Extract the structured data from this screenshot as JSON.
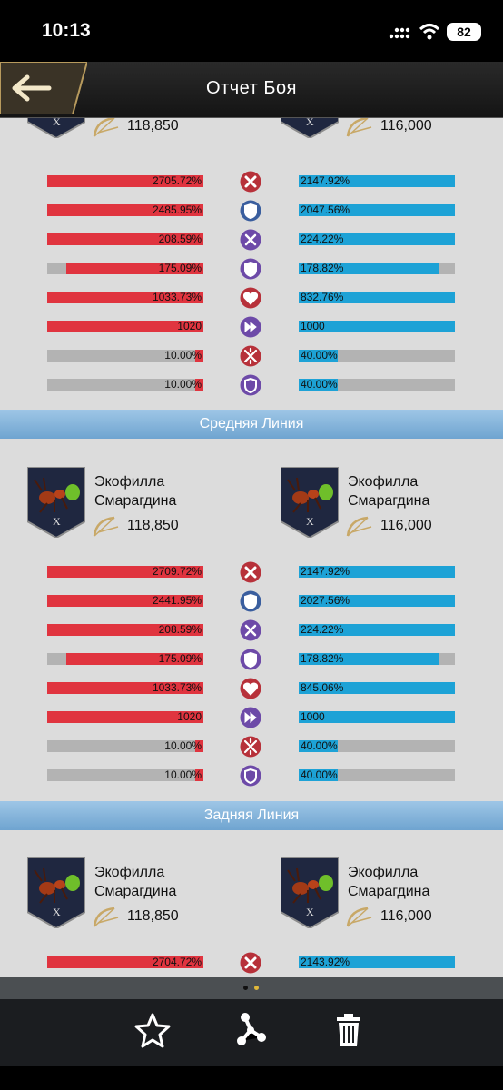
{
  "status": {
    "time": "10:13",
    "battery": "82"
  },
  "header": {
    "title": "Отчет Боя"
  },
  "sections": [
    {
      "left": {
        "power": "118,850"
      },
      "right": {
        "power": "116,000"
      },
      "stats": [
        {
          "icon": "attack-icon",
          "left": "2705.72%",
          "left_pct": 1.0,
          "right": "2147.92%",
          "right_pct": 1.0
        },
        {
          "icon": "defense-icon",
          "left": "2485.95%",
          "left_pct": 1.0,
          "right": "2047.56%",
          "right_pct": 1.0
        },
        {
          "icon": "swords-icon",
          "left": "208.59%",
          "left_pct": 1.0,
          "right": "224.22%",
          "right_pct": 1.0
        },
        {
          "icon": "shield-icon",
          "left": "175.09%",
          "left_pct": 0.88,
          "right": "178.82%",
          "right_pct": 0.9
        },
        {
          "icon": "heart-icon",
          "left": "1033.73%",
          "left_pct": 1.0,
          "right": "832.76%",
          "right_pct": 1.0
        },
        {
          "icon": "speed-icon",
          "left": "1020",
          "left_pct": 1.0,
          "right": "1000",
          "right_pct": 1.0
        },
        {
          "icon": "crit-icon",
          "left": "10.00%",
          "left_pct": 0.05,
          "right": "40.00%",
          "right_pct": 0.25
        },
        {
          "icon": "crit-defense-icon",
          "left": "10.00%",
          "left_pct": 0.05,
          "right": "40.00%",
          "right_pct": 0.25
        }
      ]
    },
    {
      "label": "Средняя Линия",
      "left": {
        "name1": "Экофилла",
        "name2": "Смарагдина",
        "power": "118,850"
      },
      "right": {
        "name1": "Экофилла",
        "name2": "Смарагдина",
        "power": "116,000"
      },
      "stats": [
        {
          "icon": "attack-icon",
          "left": "2709.72%",
          "left_pct": 1.0,
          "right": "2147.92%",
          "right_pct": 1.0
        },
        {
          "icon": "defense-icon",
          "left": "2441.95%",
          "left_pct": 1.0,
          "right": "2027.56%",
          "right_pct": 1.0
        },
        {
          "icon": "swords-icon",
          "left": "208.59%",
          "left_pct": 1.0,
          "right": "224.22%",
          "right_pct": 1.0
        },
        {
          "icon": "shield-icon",
          "left": "175.09%",
          "left_pct": 0.88,
          "right": "178.82%",
          "right_pct": 0.9
        },
        {
          "icon": "heart-icon",
          "left": "1033.73%",
          "left_pct": 1.0,
          "right": "845.06%",
          "right_pct": 1.0
        },
        {
          "icon": "speed-icon",
          "left": "1020",
          "left_pct": 1.0,
          "right": "1000",
          "right_pct": 1.0
        },
        {
          "icon": "crit-icon",
          "left": "10.00%",
          "left_pct": 0.05,
          "right": "40.00%",
          "right_pct": 0.25
        },
        {
          "icon": "crit-defense-icon",
          "left": "10.00%",
          "left_pct": 0.05,
          "right": "40.00%",
          "right_pct": 0.25
        }
      ]
    },
    {
      "label": "Задняя Линия",
      "left": {
        "name1": "Экофилла",
        "name2": "Смарагдина",
        "power": "118,850"
      },
      "right": {
        "name1": "Экофилла",
        "name2": "Смарагдина",
        "power": "116,000"
      },
      "stats": [
        {
          "icon": "attack-icon",
          "left": "2704.72%",
          "left_pct": 1.0,
          "right": "2143.92%",
          "right_pct": 1.0
        }
      ]
    }
  ],
  "toolbar": [
    "star-icon",
    "share-icon",
    "trash-icon"
  ],
  "colors": {
    "attacker_bar": "#e0343f",
    "defender_bar": "#1da2d6",
    "empty_bar": "#b3b3b3",
    "divider": "#7fb1d9"
  }
}
